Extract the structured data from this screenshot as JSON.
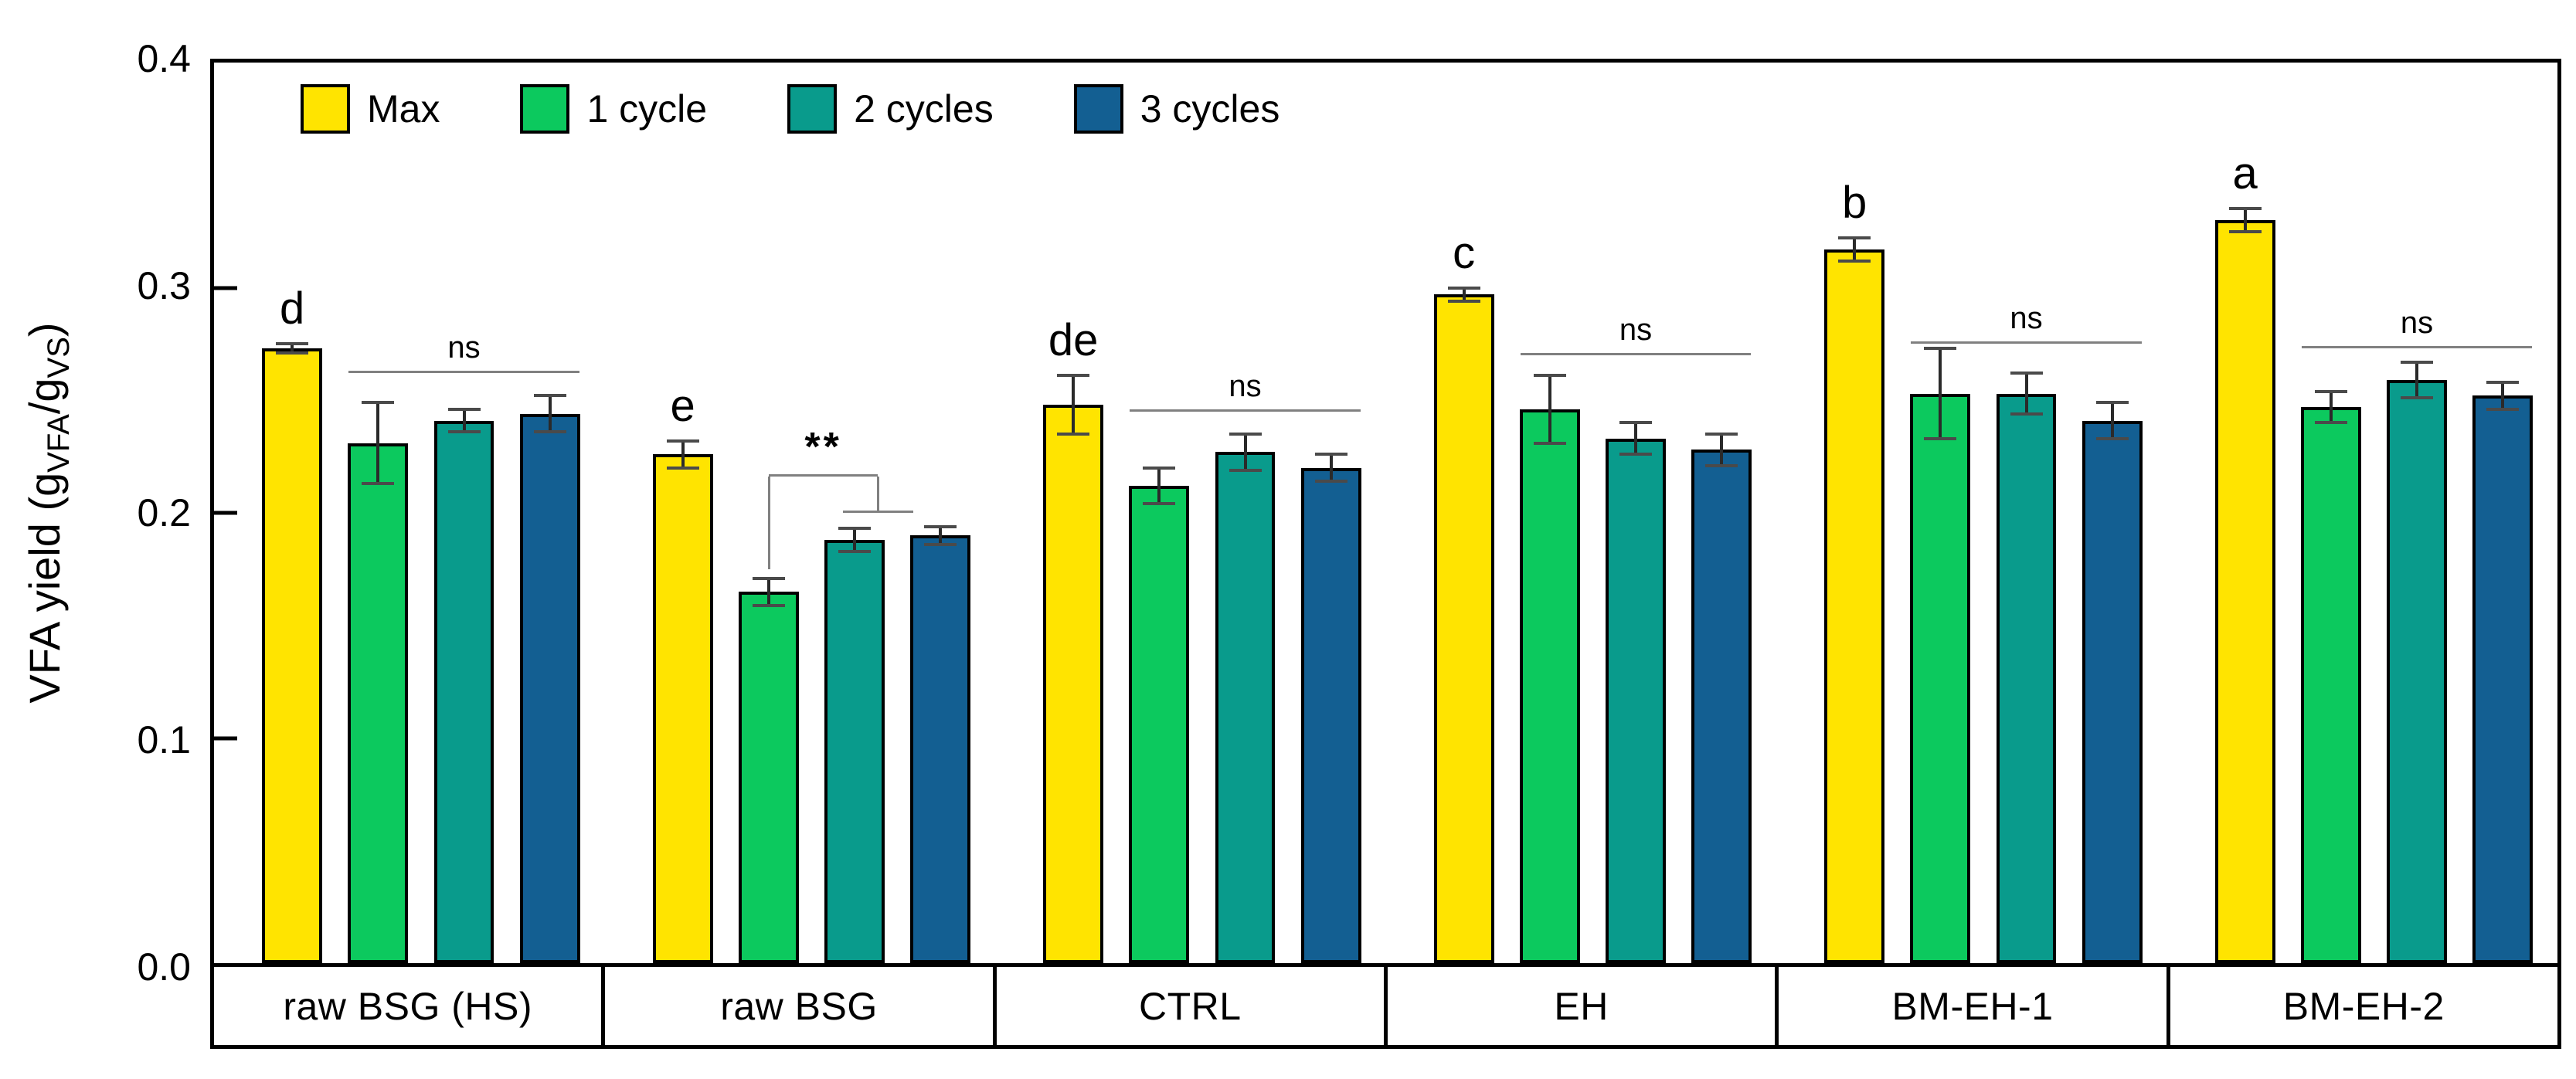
{
  "figure": {
    "background": "#ffffff",
    "frame_color": "#000000",
    "annotation_line_color": "#808080"
  },
  "axis": {
    "ylabel_parts": [
      "VFA yield (g",
      "VFA",
      "/g",
      "VS",
      ")"
    ],
    "ytick_labels": [
      "0.0",
      "0.1",
      "0.2",
      "0.3",
      "0.4"
    ]
  },
  "chart_data": {
    "type": "bar",
    "title": "",
    "xlabel": "",
    "ylabel": "VFA yield (gVFA/gVS)",
    "ylim": [
      0,
      0.4
    ],
    "yticks": [
      0.0,
      0.1,
      0.2,
      0.3,
      0.4
    ],
    "grid": false,
    "legend_position": "top-left-inside",
    "categories": [
      "raw BSG (HS)",
      "raw BSG",
      "CTRL",
      "EH",
      "BM-EH-1",
      "BM-EH-2"
    ],
    "series": [
      {
        "name": "Max",
        "color": "#FFE400",
        "values": [
          0.273,
          0.226,
          0.248,
          0.297,
          0.317,
          0.33
        ],
        "errors": [
          0.002,
          0.006,
          0.013,
          0.003,
          0.005,
          0.005
        ]
      },
      {
        "name": "1 cycle",
        "color": "#0CC95E",
        "values": [
          0.231,
          0.165,
          0.212,
          0.246,
          0.253,
          0.247
        ],
        "errors": [
          0.018,
          0.006,
          0.008,
          0.015,
          0.02,
          0.007
        ]
      },
      {
        "name": "2 cycles",
        "color": "#099B8C",
        "values": [
          0.241,
          0.188,
          0.227,
          0.233,
          0.253,
          0.259
        ],
        "errors": [
          0.005,
          0.005,
          0.008,
          0.007,
          0.009,
          0.008
        ]
      },
      {
        "name": "3 cycles",
        "color": "#135F92",
        "values": [
          0.244,
          0.19,
          0.22,
          0.228,
          0.241,
          0.252
        ],
        "errors": [
          0.008,
          0.004,
          0.006,
          0.007,
          0.008,
          0.006
        ]
      }
    ],
    "letters": [
      "d",
      "e",
      "de",
      "c",
      "b",
      "a"
    ],
    "significance": [
      {
        "group": "raw BSG (HS)",
        "type": "ns",
        "label": "ns",
        "line_value": 0.262
      },
      {
        "group": "raw BSG",
        "type": "bracket",
        "label": "**",
        "main_value": 0.216,
        "drop_left_value": 0.175,
        "sub_value": 0.2
      },
      {
        "group": "CTRL",
        "type": "ns",
        "label": "ns",
        "line_value": 0.245
      },
      {
        "group": "EH",
        "type": "ns",
        "label": "ns",
        "line_value": 0.27
      },
      {
        "group": "BM-EH-1",
        "type": "ns",
        "label": "ns",
        "line_value": 0.275
      },
      {
        "group": "BM-EH-2",
        "type": "ns",
        "label": "ns",
        "line_value": 0.273
      }
    ]
  }
}
